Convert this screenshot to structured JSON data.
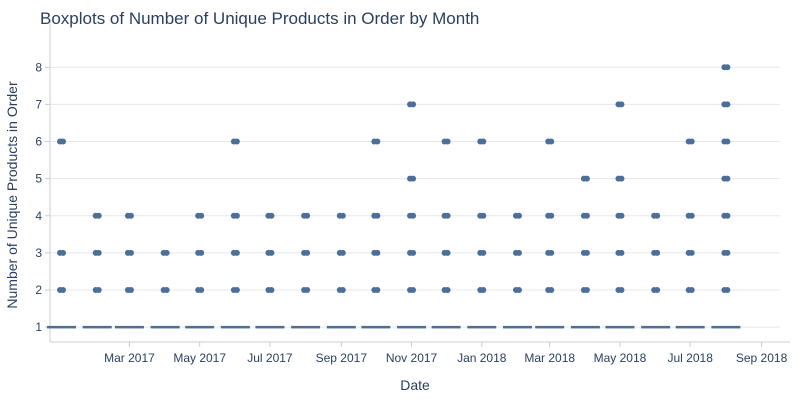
{
  "chart_data": {
    "type": "box",
    "title": "Boxplots of Number of Unique Products in Order by Month",
    "xlabel": "Date",
    "ylabel": "Number of Unique Products in Order",
    "ylim": [
      0.6,
      8.6
    ],
    "yticks": [
      1,
      2,
      3,
      4,
      5,
      6,
      7,
      8
    ],
    "xlim": [
      "2016-12-22",
      "2018-09-17"
    ],
    "xticks": [
      {
        "date": "2017-03-01",
        "label": "Mar 2017"
      },
      {
        "date": "2017-05-01",
        "label": "May 2017"
      },
      {
        "date": "2017-07-01",
        "label": "Jul 2017"
      },
      {
        "date": "2017-09-01",
        "label": "Sep 2017"
      },
      {
        "date": "2017-11-01",
        "label": "Nov 2017"
      },
      {
        "date": "2018-01-01",
        "label": "Jan 2018"
      },
      {
        "date": "2018-03-01",
        "label": "Mar 2018"
      },
      {
        "date": "2018-05-01",
        "label": "May 2018"
      },
      {
        "date": "2018-07-01",
        "label": "Jul 2018"
      },
      {
        "date": "2018-09-01",
        "label": "Sep 2018"
      }
    ],
    "grid": true,
    "color": "#4c6f99",
    "boxes": [
      {
        "date": "2017-01-01",
        "median": 1,
        "q1": 1,
        "q3": 1,
        "outliers": [
          2,
          3,
          6
        ]
      },
      {
        "date": "2017-02-01",
        "median": 1,
        "q1": 1,
        "q3": 1,
        "outliers": [
          2,
          3,
          4
        ]
      },
      {
        "date": "2017-03-01",
        "median": 1,
        "q1": 1,
        "q3": 1,
        "outliers": [
          2,
          3,
          4
        ]
      },
      {
        "date": "2017-04-01",
        "median": 1,
        "q1": 1,
        "q3": 1,
        "outliers": [
          2,
          3
        ]
      },
      {
        "date": "2017-05-01",
        "median": 1,
        "q1": 1,
        "q3": 1,
        "outliers": [
          2,
          3,
          4
        ]
      },
      {
        "date": "2017-06-01",
        "median": 1,
        "q1": 1,
        "q3": 1,
        "outliers": [
          2,
          3,
          4,
          6
        ]
      },
      {
        "date": "2017-07-01",
        "median": 1,
        "q1": 1,
        "q3": 1,
        "outliers": [
          2,
          3,
          4
        ]
      },
      {
        "date": "2017-08-01",
        "median": 1,
        "q1": 1,
        "q3": 1,
        "outliers": [
          2,
          3,
          4
        ]
      },
      {
        "date": "2017-09-01",
        "median": 1,
        "q1": 1,
        "q3": 1,
        "outliers": [
          2,
          3,
          4
        ]
      },
      {
        "date": "2017-10-01",
        "median": 1,
        "q1": 1,
        "q3": 1,
        "outliers": [
          2,
          3,
          4,
          6
        ]
      },
      {
        "date": "2017-11-01",
        "median": 1,
        "q1": 1,
        "q3": 1,
        "outliers": [
          2,
          3,
          4,
          5,
          7
        ]
      },
      {
        "date": "2017-12-01",
        "median": 1,
        "q1": 1,
        "q3": 1,
        "outliers": [
          2,
          3,
          4,
          6
        ]
      },
      {
        "date": "2018-01-01",
        "median": 1,
        "q1": 1,
        "q3": 1,
        "outliers": [
          2,
          3,
          4,
          6
        ]
      },
      {
        "date": "2018-02-01",
        "median": 1,
        "q1": 1,
        "q3": 1,
        "outliers": [
          2,
          3,
          4
        ]
      },
      {
        "date": "2018-03-01",
        "median": 1,
        "q1": 1,
        "q3": 1,
        "outliers": [
          2,
          3,
          4,
          6
        ]
      },
      {
        "date": "2018-04-01",
        "median": 1,
        "q1": 1,
        "q3": 1,
        "outliers": [
          2,
          3,
          4,
          5
        ]
      },
      {
        "date": "2018-05-01",
        "median": 1,
        "q1": 1,
        "q3": 1,
        "outliers": [
          2,
          3,
          4,
          5,
          7
        ]
      },
      {
        "date": "2018-06-01",
        "median": 1,
        "q1": 1,
        "q3": 1,
        "outliers": [
          2,
          3,
          4
        ]
      },
      {
        "date": "2018-07-01",
        "median": 1,
        "q1": 1,
        "q3": 1,
        "outliers": [
          2,
          3,
          4,
          6
        ]
      },
      {
        "date": "2018-08-01",
        "median": 1,
        "q1": 1,
        "q3": 1,
        "outliers": [
          2,
          3,
          4,
          5,
          6,
          7,
          8
        ]
      }
    ]
  }
}
